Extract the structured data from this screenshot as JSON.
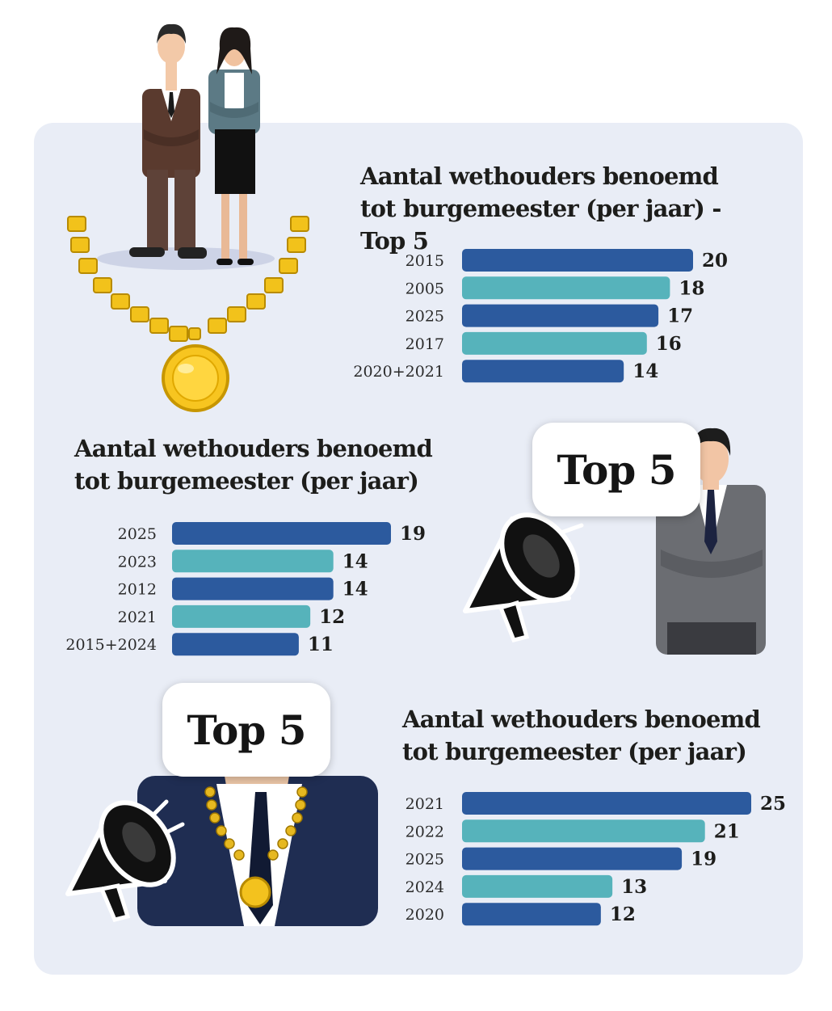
{
  "colors": {
    "dark_bar": "#2c5a9e",
    "light_bar": "#56b3bb",
    "panel": "#e9edf6"
  },
  "charts": {
    "c1": {
      "title": "Aantal wethouders benoemd tot burgemeester (per jaar) - Top 5"
    },
    "c2": {
      "title": "Aantal wethouders benoemd tot burgemeester (per jaar)"
    },
    "c3": {
      "title": "Aantal wethouders benoemd tot burgemeester (per jaar)"
    }
  },
  "bubbles": {
    "b1": "Top 5",
    "b2": "Top 5"
  },
  "icons": [
    "businessman-icon",
    "businesswoman-icon",
    "mayor-chain-icon",
    "megaphone-icon",
    "man-in-suit-icon",
    "mayor-with-chain-icon"
  ],
  "chart_data": [
    {
      "type": "bar",
      "orientation": "horizontal",
      "title": "Aantal wethouders benoemd tot burgemeester (per jaar) - Top 5",
      "categories": [
        "2015",
        "2005",
        "2025",
        "2017",
        "2020+2021"
      ],
      "values": [
        20,
        18,
        17,
        16,
        14
      ],
      "xlim": [
        0,
        20
      ],
      "grid": false
    },
    {
      "type": "bar",
      "orientation": "horizontal",
      "title": "Aantal wethouders benoemd tot burgemeester (per jaar)",
      "categories": [
        "2025",
        "2023",
        "2012",
        "2021",
        "2015+2024"
      ],
      "values": [
        19,
        14,
        14,
        12,
        11
      ],
      "xlim": [
        0,
        19
      ],
      "grid": false
    },
    {
      "type": "bar",
      "orientation": "horizontal",
      "title": "Aantal wethouders benoemd tot burgemeester (per jaar)",
      "categories": [
        "2021",
        "2022",
        "2025",
        "2024",
        "2020"
      ],
      "values": [
        25,
        21,
        19,
        13,
        12
      ],
      "xlim": [
        0,
        25
      ],
      "grid": false
    }
  ]
}
